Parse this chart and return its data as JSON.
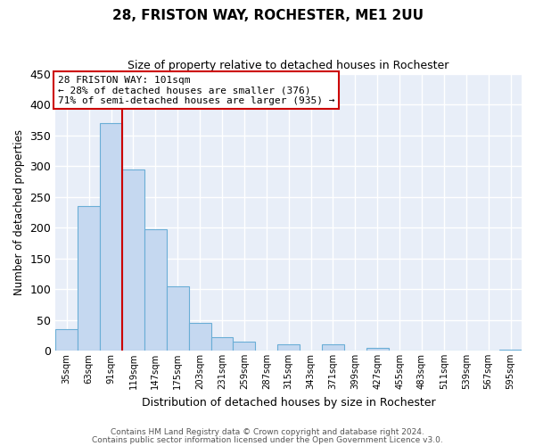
{
  "title": "28, FRISTON WAY, ROCHESTER, ME1 2UU",
  "subtitle": "Size of property relative to detached houses in Rochester",
  "xlabel": "Distribution of detached houses by size in Rochester",
  "ylabel": "Number of detached properties",
  "bin_labels": [
    "35sqm",
    "63sqm",
    "91sqm",
    "119sqm",
    "147sqm",
    "175sqm",
    "203sqm",
    "231sqm",
    "259sqm",
    "287sqm",
    "315sqm",
    "343sqm",
    "371sqm",
    "399sqm",
    "427sqm",
    "455sqm",
    "483sqm",
    "511sqm",
    "539sqm",
    "567sqm",
    "595sqm"
  ],
  "bar_heights": [
    35,
    235,
    370,
    295,
    198,
    105,
    45,
    22,
    15,
    0,
    10,
    0,
    10,
    0,
    5,
    0,
    0,
    0,
    0,
    0,
    2
  ],
  "bar_color": "#c5d8f0",
  "bar_edgecolor": "#6aaed6",
  "vline_x": 2.5,
  "vline_color": "#cc0000",
  "annotation_title": "28 FRISTON WAY: 101sqm",
  "annotation_line1": "← 28% of detached houses are smaller (376)",
  "annotation_line2": "71% of semi-detached houses are larger (935) →",
  "annotation_box_color": "#ffffff",
  "annotation_box_edgecolor": "#cc0000",
  "ylim": [
    0,
    450
  ],
  "yticks": [
    0,
    50,
    100,
    150,
    200,
    250,
    300,
    350,
    400,
    450
  ],
  "footer1": "Contains HM Land Registry data © Crown copyright and database right 2024.",
  "footer2": "Contains public sector information licensed under the Open Government Licence v3.0.",
  "bg_color": "#ffffff",
  "plot_bg_color": "#e8eef8"
}
